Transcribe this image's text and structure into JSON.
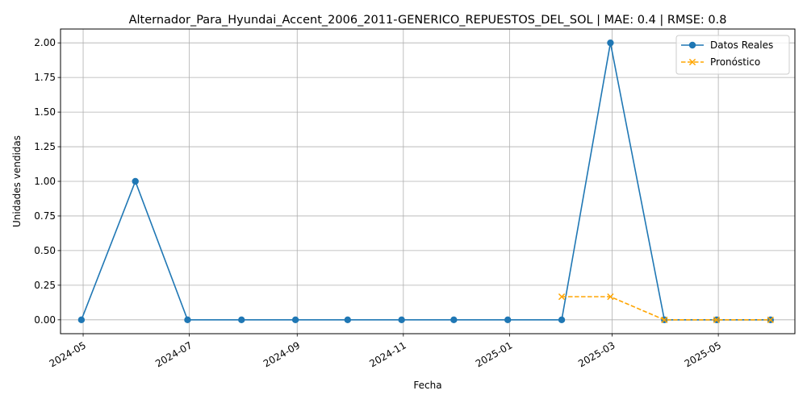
{
  "chart_data": {
    "type": "line",
    "title": "Alternador_Para_Hyundai_Accent_2006_2011-GENERICO_REPUESTOS_DEL_SOL | MAE: 0.4 | RMSE: 0.8",
    "xlabel": "Fecha",
    "ylabel": "Unidades vendidas",
    "ylim": [
      -0.1,
      2.1
    ],
    "xlim": [
      "2024-04-18",
      "2025-06-14"
    ],
    "grid": true,
    "legend": "top-right",
    "x_ticks": [
      "2024-05",
      "2024-07",
      "2024-09",
      "2024-11",
      "2025-01",
      "2025-03",
      "2025-05"
    ],
    "y_ticks": [
      "0.00",
      "0.25",
      "0.50",
      "0.75",
      "1.00",
      "1.25",
      "1.50",
      "1.75",
      "2.00"
    ],
    "series": [
      {
        "name": "Datos Reales",
        "color": "#1f77b4",
        "style": "solid",
        "marker": "circle",
        "x": [
          "2024-04-30",
          "2024-05-31",
          "2024-06-30",
          "2024-07-31",
          "2024-08-31",
          "2024-09-30",
          "2024-10-31",
          "2024-11-30",
          "2024-12-31",
          "2025-01-31",
          "2025-02-28",
          "2025-03-31",
          "2025-04-30",
          "2025-05-31"
        ],
        "values": [
          0,
          1,
          0,
          0,
          0,
          0,
          0,
          0,
          0,
          0,
          2,
          0,
          0,
          0
        ]
      },
      {
        "name": "Pronóstico",
        "color": "#ffa500",
        "style": "dashed",
        "marker": "x",
        "x": [
          "2025-01-31",
          "2025-02-28",
          "2025-03-31",
          "2025-04-30",
          "2025-05-31"
        ],
        "values": [
          0.167,
          0.167,
          0,
          0,
          0
        ]
      }
    ]
  }
}
